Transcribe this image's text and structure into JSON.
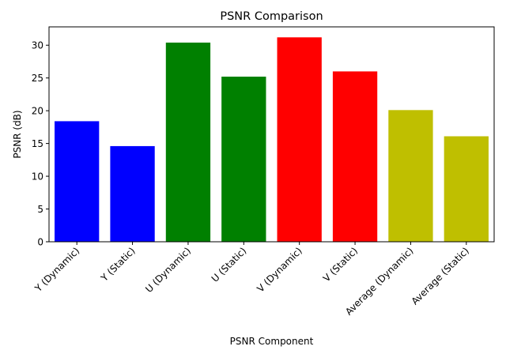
{
  "chart_data": {
    "type": "bar",
    "title": "PSNR Comparison",
    "xlabel": "PSNR Component",
    "ylabel": "PSNR (dB)",
    "categories": [
      "Y (Dynamic)",
      "Y (Static)",
      "U (Dynamic)",
      "U (Static)",
      "V (Dynamic)",
      "V (Static)",
      "Average (Dynamic)",
      "Average (Static)"
    ],
    "values": [
      18.4,
      14.6,
      30.4,
      25.2,
      31.2,
      26.0,
      20.1,
      16.1
    ],
    "colors": [
      "#0000ff",
      "#0000ff",
      "#008000",
      "#008000",
      "#ff0000",
      "#ff0000",
      "#bfbf00",
      "#bfbf00"
    ],
    "ylim": [
      0,
      32.8
    ],
    "yticks": [
      0,
      5,
      10,
      15,
      20,
      25,
      30
    ],
    "grid": false,
    "legend": "none"
  }
}
